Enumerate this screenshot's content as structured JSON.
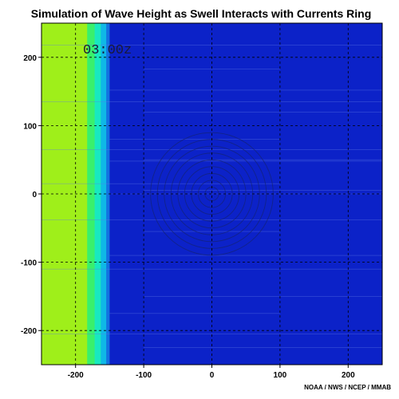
{
  "chart_data": {
    "type": "heatmap",
    "title": "Simulation of Wave Height as Swell Interacts with Currents Ring",
    "timestamp": "03:00z",
    "credit": "NOAA / NWS / NCEP / MMAB",
    "xlim": [
      -250,
      250
    ],
    "ylim": [
      -250,
      250
    ],
    "xticks": [
      -200,
      -100,
      0,
      100,
      200
    ],
    "yticks": [
      -200,
      -100,
      0,
      100,
      200
    ],
    "grid": true,
    "grid_style": "dashed",
    "color_bands": [
      {
        "x0": -250,
        "x1": -183,
        "color": "#9fef1a"
      },
      {
        "x0": -183,
        "x1": -172,
        "color": "#39f06c"
      },
      {
        "x0": -172,
        "x1": -163,
        "color": "#18e8c0"
      },
      {
        "x0": -163,
        "x1": -155,
        "color": "#0fb8e6"
      },
      {
        "x0": -155,
        "x1": -150,
        "color": "#1273e0"
      },
      {
        "x0": -150,
        "x1": 250,
        "color": "#0c22c8"
      }
    ],
    "current_ring": {
      "center": [
        0,
        0
      ],
      "radii": [
        10,
        20,
        30,
        40,
        50,
        60,
        70,
        80,
        90
      ]
    }
  }
}
